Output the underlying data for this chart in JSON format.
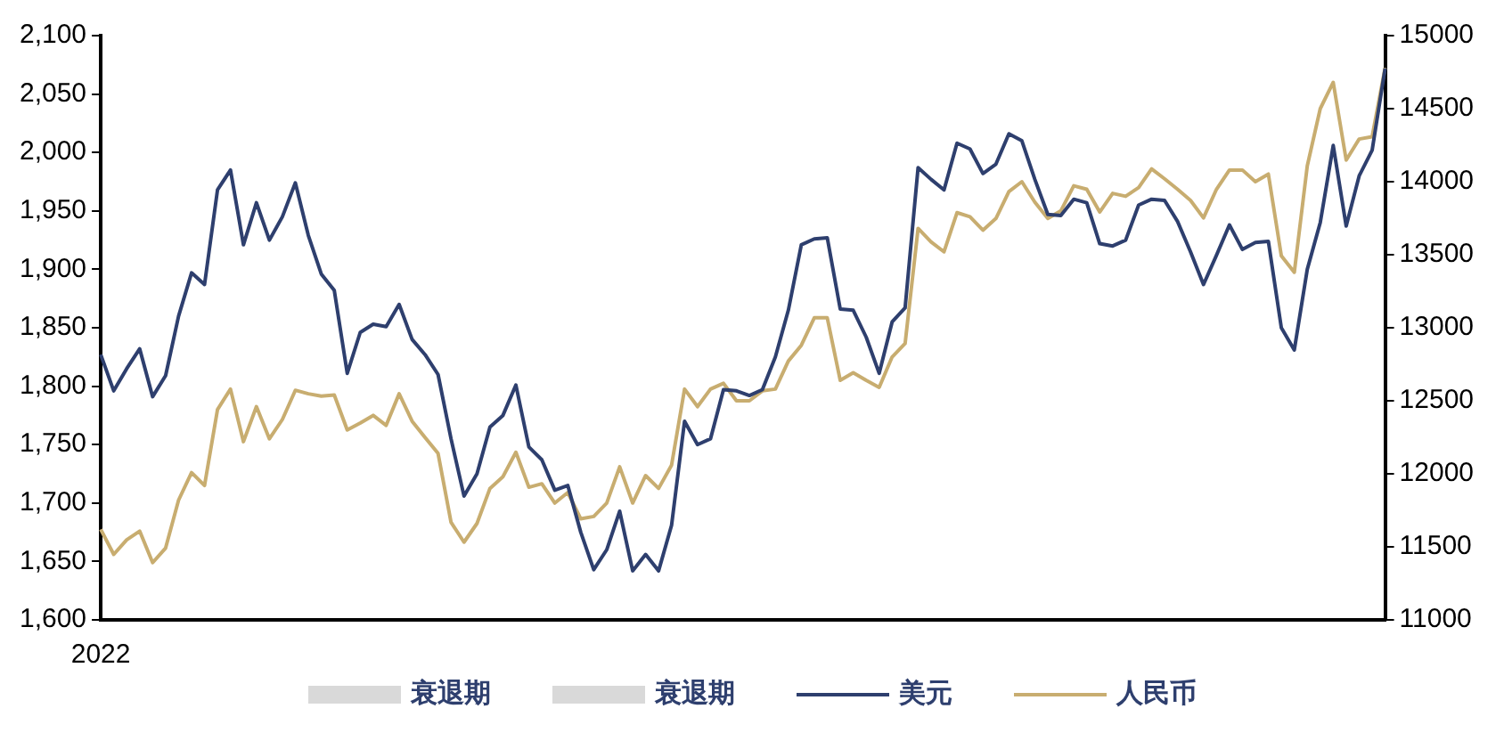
{
  "chart_data": {
    "type": "line",
    "categories": [
      "2022",
      null,
      null,
      null,
      null,
      null,
      null,
      null,
      null,
      null,
      null,
      null,
      null,
      null,
      null,
      null,
      null,
      null,
      null,
      null,
      null,
      null,
      null,
      null,
      null,
      null,
      null,
      null,
      null,
      null,
      null,
      null,
      null,
      null,
      null,
      null,
      null,
      null,
      null,
      null,
      null,
      null,
      null,
      null,
      null,
      null,
      null,
      null,
      null,
      null,
      null,
      null,
      null,
      null,
      null,
      null,
      null,
      null,
      null,
      null,
      null,
      null,
      null,
      null,
      null,
      null,
      null,
      null,
      null,
      null,
      null,
      null,
      null,
      null,
      null,
      null,
      null,
      null,
      null,
      null,
      null,
      null,
      null,
      null,
      null,
      null,
      null,
      null,
      null,
      null,
      null,
      null,
      null,
      null,
      null,
      null,
      null,
      null,
      null,
      null
    ],
    "series": [
      {
        "name": "衰退期",
        "type": "bar",
        "color": "#d9d9d9",
        "values": [
          null,
          null,
          null,
          null,
          null,
          null,
          null,
          null,
          null,
          null,
          null,
          null,
          null,
          null,
          null,
          null,
          null,
          null,
          null,
          null,
          null,
          null,
          null,
          null,
          null,
          null,
          null,
          null,
          null,
          null,
          null,
          null,
          null,
          null,
          null,
          null,
          null,
          null,
          null,
          null,
          null,
          null,
          null,
          null,
          null,
          null,
          null,
          null,
          null,
          null,
          null,
          null,
          null,
          null,
          null,
          null,
          null,
          null,
          null,
          null,
          null,
          null,
          null,
          null,
          null,
          null,
          null,
          null,
          null,
          null,
          null,
          null,
          null,
          null,
          null,
          null,
          null,
          null,
          null,
          null,
          null,
          null,
          null,
          null,
          null,
          null,
          null,
          null,
          null,
          null,
          null,
          null,
          null,
          null,
          null,
          null,
          null,
          null,
          null,
          null
        ]
      },
      {
        "name": "衰退期",
        "type": "bar",
        "color": "#d9d9d9",
        "values": [
          null,
          null,
          null,
          null,
          null,
          null,
          null,
          null,
          null,
          null,
          null,
          null,
          null,
          null,
          null,
          null,
          null,
          null,
          null,
          null,
          null,
          null,
          null,
          null,
          null,
          null,
          null,
          null,
          null,
          null,
          null,
          null,
          null,
          null,
          null,
          null,
          null,
          null,
          null,
          null,
          null,
          null,
          null,
          null,
          null,
          null,
          null,
          null,
          null,
          null,
          null,
          null,
          null,
          null,
          null,
          null,
          null,
          null,
          null,
          null,
          null,
          null,
          null,
          null,
          null,
          null,
          null,
          null,
          null,
          null,
          null,
          null,
          null,
          null,
          null,
          null,
          null,
          null,
          null,
          null,
          null,
          null,
          null,
          null,
          null,
          null,
          null,
          null,
          null,
          null,
          null,
          null,
          null,
          null,
          null,
          null,
          null,
          null,
          null,
          null
        ]
      },
      {
        "name": "美元",
        "color": "#2e3f6e",
        "values": [
          1827,
          1796,
          1815,
          1832,
          1791,
          1809,
          1860,
          1897,
          1887,
          1968,
          1985,
          1921,
          1957,
          1925,
          1945,
          1974,
          1929,
          1896,
          1882,
          1811,
          1846,
          1853,
          1851,
          1870,
          1840,
          1827,
          1810,
          1755,
          1706,
          1725,
          1765,
          1775,
          1801,
          1748,
          1737,
          1711,
          1715,
          1675,
          1643,
          1660,
          1693,
          1642,
          1656,
          1642,
          1681,
          1770,
          1750,
          1755,
          1797,
          1796,
          1792,
          1797,
          1825,
          1865,
          1921,
          1926,
          1927,
          1866,
          1865,
          1842,
          1811,
          1855,
          1867,
          1987,
          1977,
          1968,
          2008,
          2003,
          1982,
          1990,
          2016,
          2010,
          1977,
          1947,
          1946,
          1960,
          1957,
          1922,
          1920,
          1925,
          1955,
          1960,
          1959,
          1941,
          1915,
          1887,
          1912,
          1938,
          1917,
          1923,
          1924,
          1850,
          1831,
          1900,
          1940,
          2006,
          1937,
          1980,
          2002,
          2072
        ]
      },
      {
        "name": "人民币",
        "axis": "y2",
        "color": "#c8ad70",
        "values": [
          11620,
          11448,
          11548,
          11608,
          11392,
          11492,
          11820,
          12008,
          11920,
          12440,
          12580,
          12220,
          12460,
          12240,
          12372,
          12572,
          12548,
          12532,
          12540,
          12300,
          12348,
          12400,
          12332,
          12548,
          12360,
          12248,
          12140,
          11668,
          11532,
          11660,
          11900,
          11980,
          12148,
          11908,
          11932,
          11800,
          11872,
          11692,
          11708,
          11800,
          12048,
          11800,
          11988,
          11900,
          12060,
          12580,
          12460,
          12580,
          12620,
          12500,
          12500,
          12568,
          12580,
          12772,
          12880,
          13068,
          13068,
          12640,
          12692,
          12640,
          12592,
          12800,
          12892,
          13680,
          13588,
          13520,
          13788,
          13760,
          13668,
          13748,
          13932,
          14000,
          13860,
          13748,
          13800,
          13972,
          13948,
          13792,
          13920,
          13900,
          13960,
          14088,
          14020,
          13948,
          13872,
          13752,
          13948,
          14080,
          14080,
          14000,
          14052,
          13492,
          13380,
          14108,
          14500,
          14680,
          14148,
          14292,
          14308,
          14780
        ]
      }
    ],
    "ylim": [
      1600,
      2100
    ],
    "yticks": [
      {
        "value": 1600,
        "label": "1,600"
      },
      {
        "value": 1650,
        "label": "1,650"
      },
      {
        "value": 1700,
        "label": "1,700"
      },
      {
        "value": 1750,
        "label": "1,750"
      },
      {
        "value": 1800,
        "label": "1,800"
      },
      {
        "value": 1850,
        "label": "1,850"
      },
      {
        "value": 1900,
        "label": "1,900"
      },
      {
        "value": 1950,
        "label": "1,950"
      },
      {
        "value": 2000,
        "label": "2,000"
      },
      {
        "value": 2050,
        "label": "2,050"
      },
      {
        "value": 2100,
        "label": "2,100"
      }
    ],
    "y2lim": [
      11000,
      15000
    ],
    "y2ticks": [
      11000,
      11500,
      12000,
      12500,
      13000,
      13500,
      14000,
      14500,
      15000
    ],
    "grid": false,
    "legend": "bottom",
    "marker": "none",
    "line_style": "solid"
  }
}
